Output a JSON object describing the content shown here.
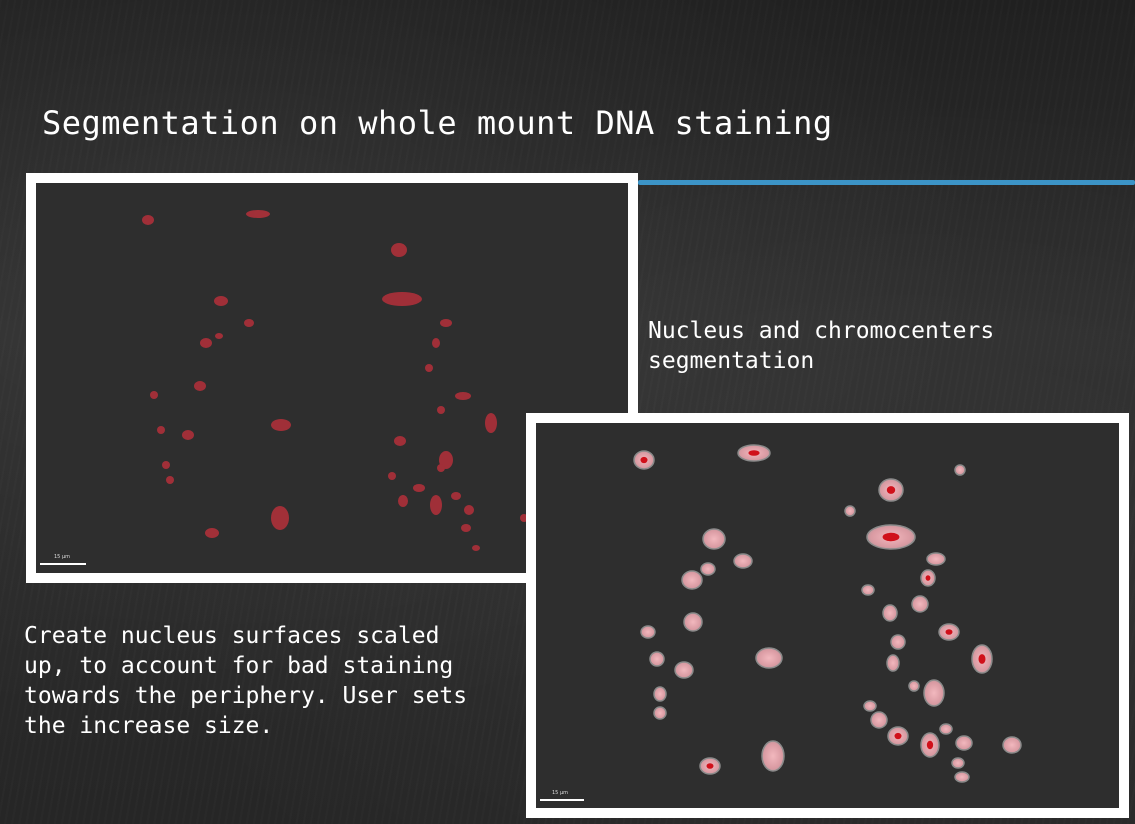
{
  "slide": {
    "title": "Segmentation on whole mount DNA staining",
    "accent_color": "#3ea0d8"
  },
  "captions": {
    "right": "Nucleus and chromocenters\nsegmentation",
    "left": "Create nucleus surfaces scaled\nup, to account for bad staining\ntowards the periphery. User sets\nthe increase size."
  },
  "images": {
    "top_left": {
      "scale_label": "15 µm",
      "blob_color": "#b5303a"
    },
    "bottom_right": {
      "scale_label": "15 µm",
      "surface_color": "#e8a0a8",
      "core_color": "#d0101a"
    }
  }
}
